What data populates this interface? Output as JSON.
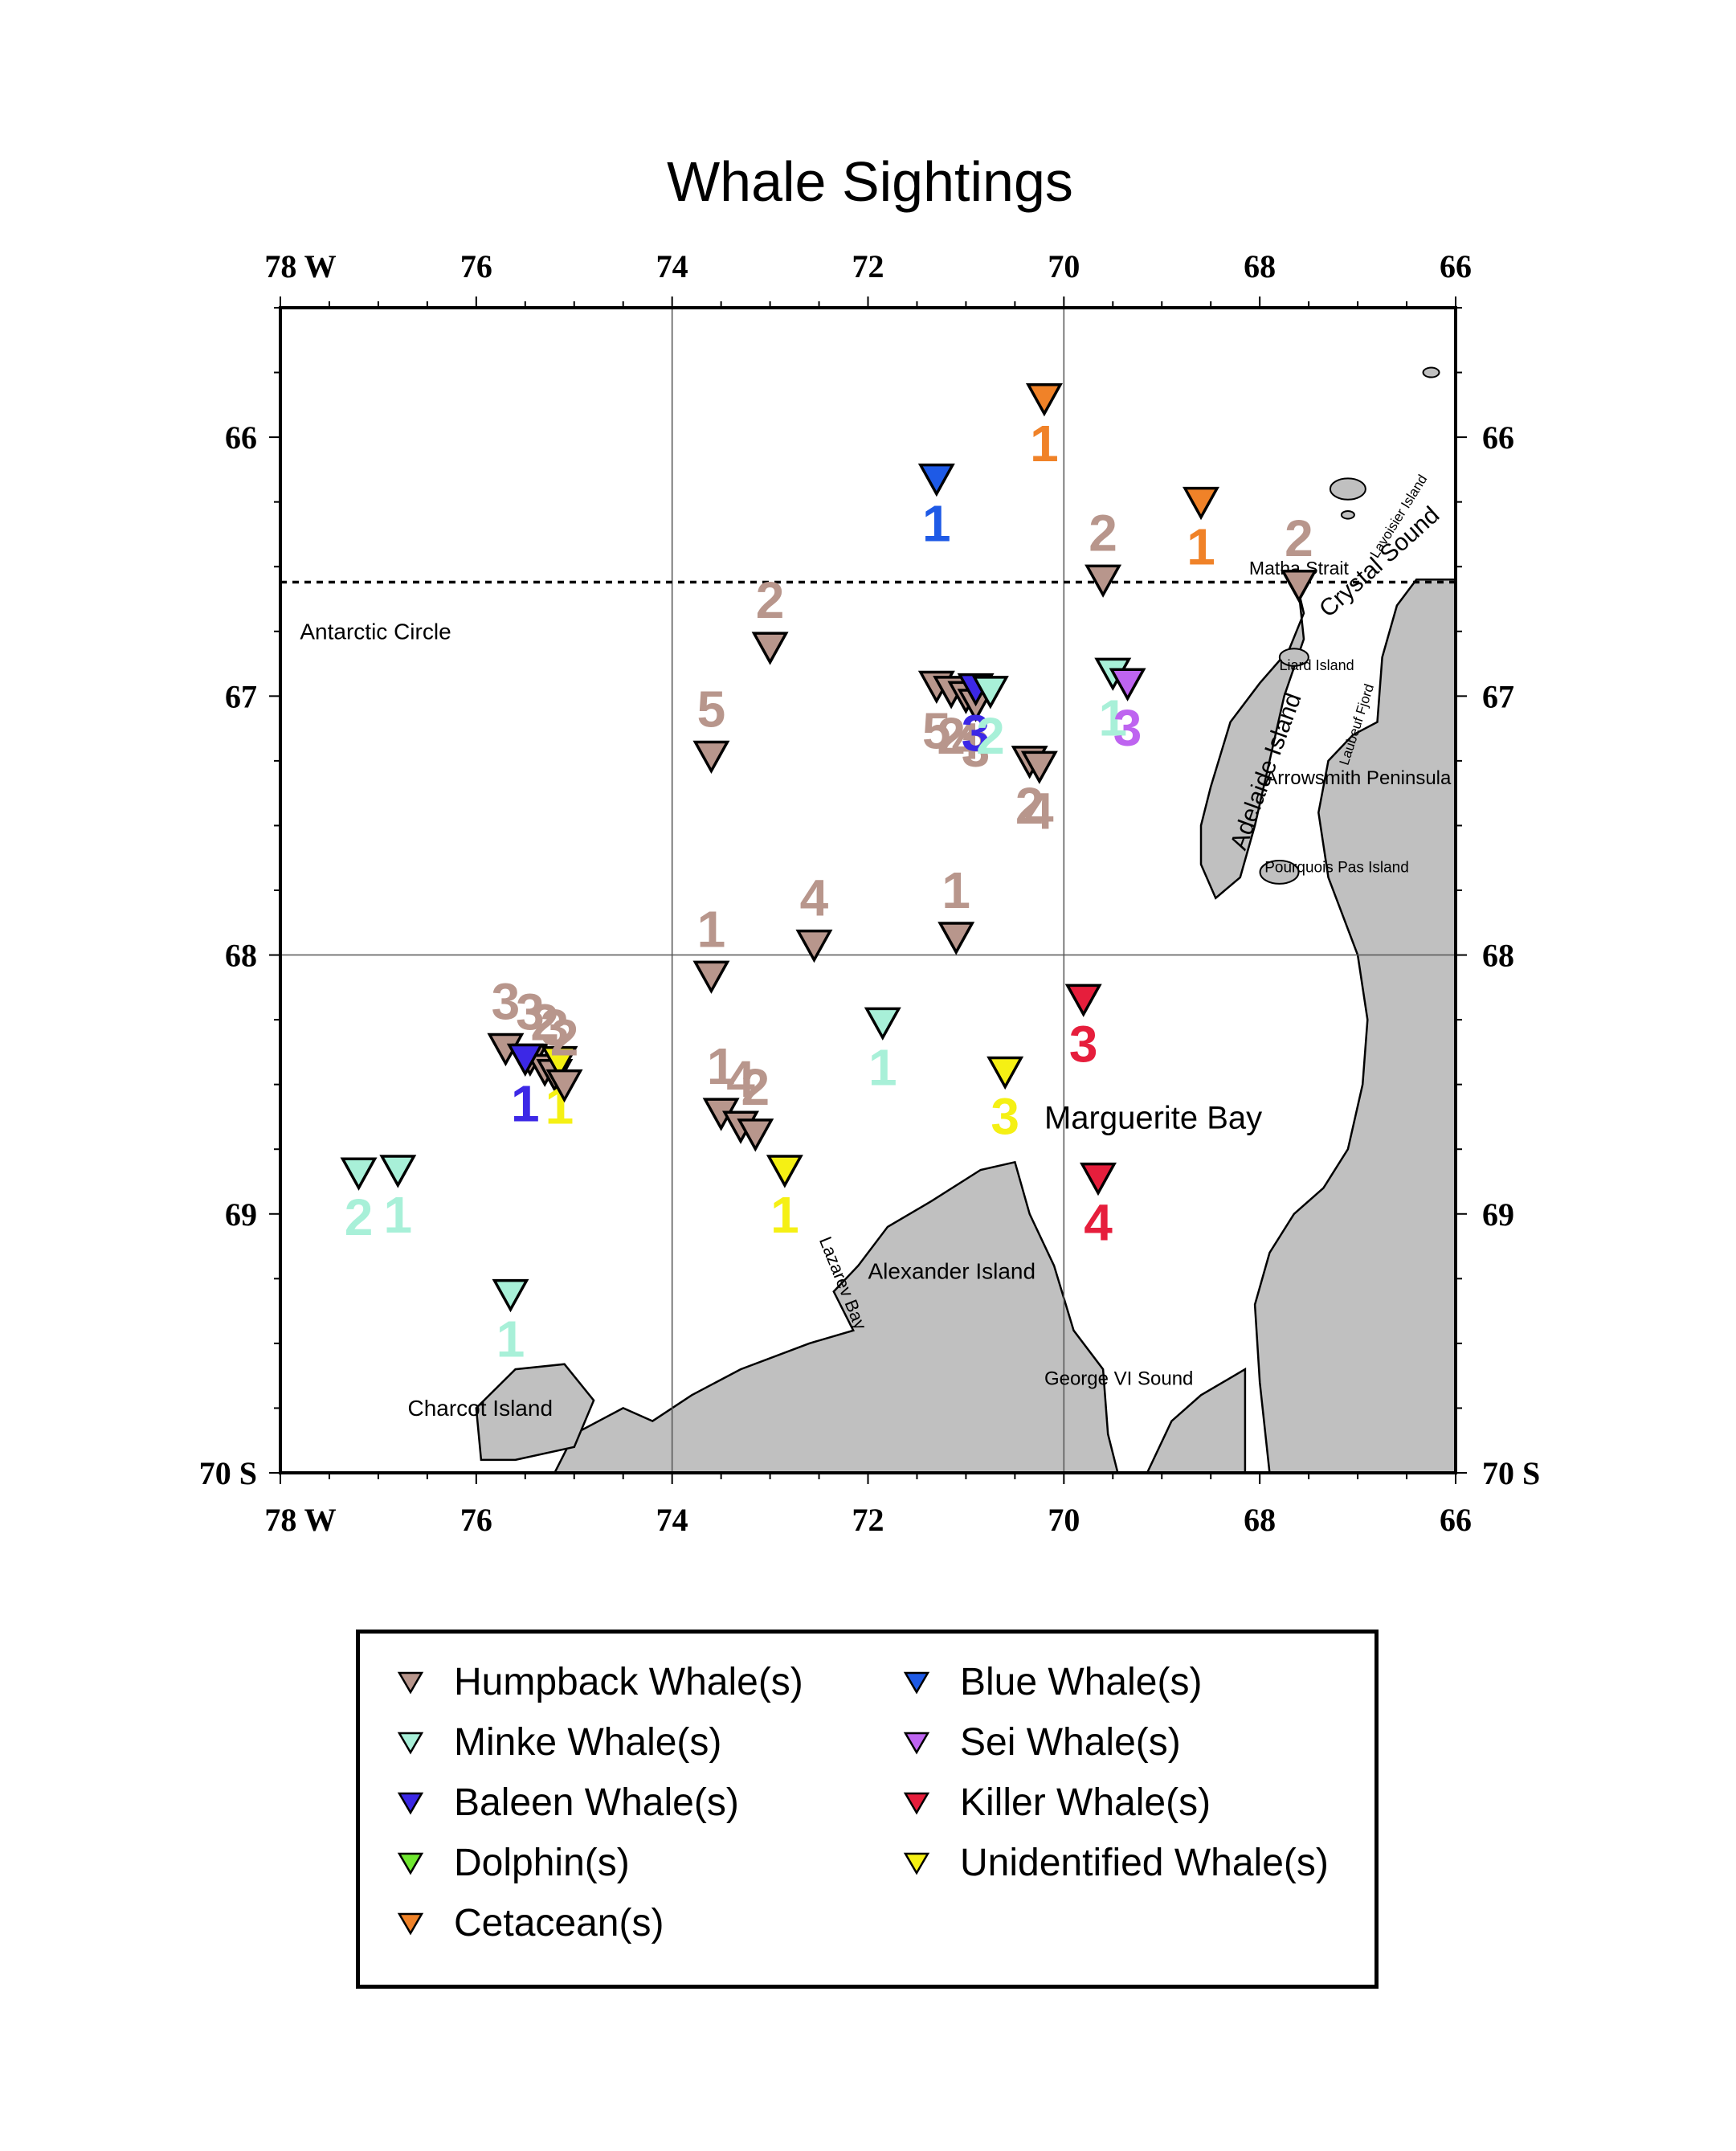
{
  "title": "Whale Sightings",
  "map": {
    "lon_range": [
      -78,
      -66
    ],
    "lat_range": [
      -70,
      -65.5
    ],
    "graticule_lon": [
      -74,
      -70
    ],
    "graticule_lat": [
      -68
    ],
    "top_lon_labels": [
      "78 W",
      "76",
      "74",
      "72",
      "70",
      "68",
      "66"
    ],
    "bottom_lon_labels": [
      "78 W",
      "76",
      "74",
      "72",
      "70",
      "68",
      "66"
    ],
    "left_lat_labels": [
      "66",
      "67",
      "68",
      "69",
      "70 S"
    ],
    "right_lat_labels": [
      "66",
      "67",
      "68",
      "69",
      "70 S"
    ],
    "antarctic_circle_lat": -66.56,
    "land_color": "#c0c0c0",
    "place_labels": {
      "antarctic_circle": "Antarctic Circle",
      "matha_strait": "Matha Strait",
      "crystal_sound": "Crystal Sound",
      "lavoisier_island": "Lavoisier Island",
      "liard_island": "Liard Island",
      "laubeuf_fjord": "Laubeuf Fjord",
      "adelaide_island": "Adelaide Island",
      "arrowsmith_peninsula": "Arrowsmith Peninsula",
      "pourquois_pas_island": "Pourquois Pas Island",
      "marguerite_bay": "Marguerite Bay",
      "lazarev_bay": "Lazarev Bay",
      "alexander_island": "Alexander Island",
      "george_vi_sound": "George VI Sound",
      "charcot_island": "Charcot Island"
    }
  },
  "legend": [
    {
      "key": "humpback",
      "label": "Humpback Whale(s)",
      "color": "#b8968c"
    },
    {
      "key": "minke",
      "label": "Minke Whale(s)",
      "color": "#a8f0d8"
    },
    {
      "key": "baleen",
      "label": "Baleen Whale(s)",
      "color": "#3c28e6"
    },
    {
      "key": "dolphin",
      "label": "Dolphin(s)",
      "color": "#70e830"
    },
    {
      "key": "cetacean",
      "label": "Cetacean(s)",
      "color": "#f08228"
    },
    {
      "key": "blue",
      "label": "Blue Whale(s)",
      "color": "#1e5ae6"
    },
    {
      "key": "sei",
      "label": "Sei Whale(s)",
      "color": "#be64f0"
    },
    {
      "key": "killer",
      "label": "Killer Whale(s)",
      "color": "#e61e3c"
    },
    {
      "key": "unidentified",
      "label": "Unidentified Whale(s)",
      "color": "#f5f014"
    }
  ],
  "sightings": [
    {
      "species": "cetacean",
      "lon": -70.2,
      "lat": -65.85,
      "count": "1"
    },
    {
      "species": "blue",
      "lon": -71.3,
      "lat": -66.16,
      "count": "1"
    },
    {
      "species": "cetacean",
      "lon": -68.6,
      "lat": -66.25,
      "count": "1"
    },
    {
      "species": "humpback",
      "lon": -69.6,
      "lat": -66.55,
      "count": "2"
    },
    {
      "species": "humpback",
      "lon": -67.6,
      "lat": -66.57,
      "count": "2"
    },
    {
      "species": "humpback",
      "lon": -73.0,
      "lat": -66.81,
      "count": "2"
    },
    {
      "species": "humpback",
      "lon": -71.3,
      "lat": -66.96,
      "count": "5"
    },
    {
      "species": "humpback",
      "lon": -71.15,
      "lat": -66.98,
      "count": "2"
    },
    {
      "species": "humpback",
      "lon": -71.0,
      "lat": -67.0,
      "count": "4"
    },
    {
      "species": "humpback",
      "lon": -70.9,
      "lat": -67.03,
      "count": "3"
    },
    {
      "species": "baleen",
      "lon": -70.9,
      "lat": -66.97,
      "count": "3"
    },
    {
      "species": "minke",
      "lon": -70.75,
      "lat": -66.98,
      "count": "2"
    },
    {
      "species": "humpback",
      "lon": -70.35,
      "lat": -67.25,
      "count": "2"
    },
    {
      "species": "humpback",
      "lon": -70.25,
      "lat": -67.27,
      "count": "4"
    },
    {
      "species": "minke",
      "lon": -69.5,
      "lat": -66.91,
      "count": "1"
    },
    {
      "species": "sei",
      "lon": -69.35,
      "lat": -66.95,
      "count": "3"
    },
    {
      "species": "humpback",
      "lon": -73.6,
      "lat": -67.23,
      "count": "5"
    },
    {
      "species": "humpback",
      "lon": -71.1,
      "lat": -67.93,
      "count": "1"
    },
    {
      "species": "humpback",
      "lon": -72.55,
      "lat": -67.96,
      "count": "4"
    },
    {
      "species": "humpback",
      "lon": -73.6,
      "lat": -68.08,
      "count": "1"
    },
    {
      "species": "killer",
      "lon": -69.8,
      "lat": -68.17,
      "count": "3"
    },
    {
      "species": "minke",
      "lon": -71.85,
      "lat": -68.26,
      "count": "1"
    },
    {
      "species": "unidentified",
      "lon": -70.6,
      "lat": -68.45,
      "count": "3"
    },
    {
      "species": "humpback",
      "lon": -75.7,
      "lat": -68.36,
      "count": "3"
    },
    {
      "species": "humpback",
      "lon": -75.45,
      "lat": -68.4,
      "count": "3"
    },
    {
      "species": "humpback",
      "lon": -75.3,
      "lat": -68.44,
      "count": "2"
    },
    {
      "species": "humpback",
      "lon": -75.2,
      "lat": -68.46,
      "count": "3"
    },
    {
      "species": "baleen",
      "lon": -75.5,
      "lat": -68.4,
      "count": "1"
    },
    {
      "species": "unidentified",
      "lon": -75.15,
      "lat": -68.41,
      "count": "1"
    },
    {
      "species": "humpback",
      "lon": -75.1,
      "lat": -68.5,
      "count": "2"
    },
    {
      "species": "humpback",
      "lon": -73.5,
      "lat": -68.61,
      "count": "1"
    },
    {
      "species": "humpback",
      "lon": -73.3,
      "lat": -68.66,
      "count": "4"
    },
    {
      "species": "humpback",
      "lon": -73.15,
      "lat": -68.69,
      "count": "2"
    },
    {
      "species": "unidentified",
      "lon": -72.85,
      "lat": -68.83,
      "count": "1"
    },
    {
      "species": "killer",
      "lon": -69.65,
      "lat": -68.86,
      "count": "4"
    },
    {
      "species": "minke",
      "lon": -77.2,
      "lat": -68.84,
      "count": "2"
    },
    {
      "species": "minke",
      "lon": -76.8,
      "lat": -68.83,
      "count": "1"
    },
    {
      "species": "minke",
      "lon": -75.65,
      "lat": -69.31,
      "count": "1"
    }
  ]
}
